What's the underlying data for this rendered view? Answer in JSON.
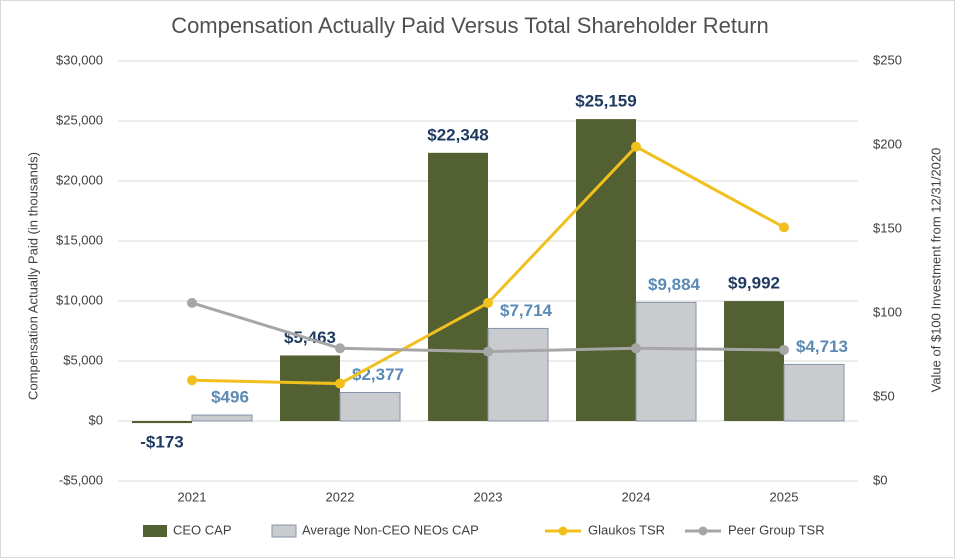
{
  "chart_data": {
    "type": "bar_line",
    "title": "Compensation Actually Paid Versus Total Shareholder Return",
    "y_label": "Compensation Actually Paid (in thousands)",
    "y2_label": "Value of $100 Investment from 12/31/2020",
    "categories": [
      "2021",
      "2022",
      "2023",
      "2024",
      "2025"
    ],
    "ylim": [
      -5000,
      30000
    ],
    "yticks": [
      {
        "value": -5000,
        "label": "-$5,000"
      },
      {
        "value": 0,
        "label": "$0"
      },
      {
        "value": 5000,
        "label": "$5,000"
      },
      {
        "value": 10000,
        "label": "$10,000"
      },
      {
        "value": 15000,
        "label": "$15,000"
      },
      {
        "value": 20000,
        "label": "$20,000"
      },
      {
        "value": 25000,
        "label": "$25,000"
      },
      {
        "value": 30000,
        "label": "$30,000"
      }
    ],
    "y2lim": [
      0,
      250
    ],
    "y2ticks": [
      {
        "value": 0,
        "label": "$0"
      },
      {
        "value": 50,
        "label": "$50"
      },
      {
        "value": 100,
        "label": "$100"
      },
      {
        "value": 150,
        "label": "$150"
      },
      {
        "value": 200,
        "label": "$200"
      },
      {
        "value": 250,
        "label": "$250"
      }
    ],
    "grid": true,
    "legend": "bottom",
    "series": [
      {
        "name": "CEO CAP",
        "type": "bar",
        "color": "#536031",
        "values": [
          -173,
          5463,
          22348,
          25159,
          9992
        ],
        "value_labels": [
          "-$173",
          "$5,463",
          "$22,348",
          "$25,159",
          "$9,992"
        ],
        "label_color": "#1f3a5f"
      },
      {
        "name": "Average Non-CEO NEOs CAP",
        "type": "bar",
        "color": "#c9cbce",
        "values": [
          496,
          2377,
          7714,
          9884,
          4713
        ],
        "value_labels": [
          "$496",
          "$2,377",
          "$7,714",
          "$9,884",
          "$4,713"
        ],
        "label_color": "#5b8ab5"
      },
      {
        "name": "Glaukos TSR",
        "type": "line",
        "axis": "y2",
        "color": "#f2c01e",
        "values": [
          60,
          58,
          106,
          199,
          151
        ]
      },
      {
        "name": "Peer Group TSR",
        "type": "line",
        "axis": "y2",
        "color": "#a6a6a6",
        "values": [
          106,
          79,
          77,
          79,
          78
        ]
      }
    ]
  }
}
